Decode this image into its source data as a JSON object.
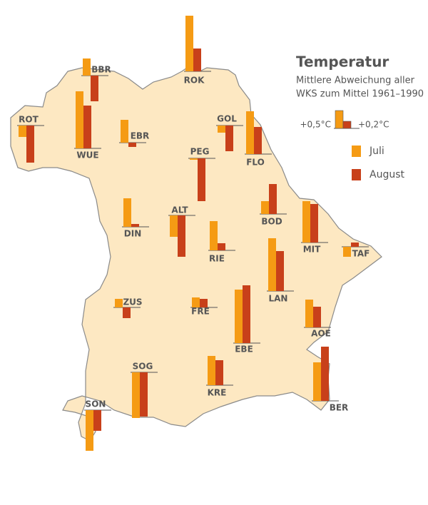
{
  "chart_data": {
    "type": "bar",
    "title": "Temperatur",
    "subtitle": [
      "Mittlere Abweichung aller",
      "WKS zum Mittel 1961–1990"
    ],
    "legend_sample": [
      {
        "value": 0.5,
        "label": "+0,5°C"
      },
      {
        "value": 0.2,
        "label": "+0,2°C"
      }
    ],
    "categories": [
      "ROK",
      "BBR",
      "ROT",
      "WUE",
      "EBR",
      "GOL",
      "PEG",
      "FLO",
      "BOD",
      "MIT",
      "TAF",
      "DIN",
      "ALT",
      "RIE",
      "LAN",
      "ZUS",
      "FRE",
      "EBE",
      "AOE",
      "SOG",
      "KRE",
      "BER",
      "SON"
    ],
    "series": [
      {
        "name": "Juli",
        "color": "#f59b14",
        "values": [
          1.56,
          0.48,
          -0.32,
          1.6,
          0.64,
          -0.2,
          -0.04,
          1.2,
          0.36,
          1.16,
          -0.28,
          0.8,
          -0.6,
          0.82,
          1.48,
          0.24,
          0.28,
          1.5,
          0.78,
          -1.28,
          0.82,
          1.08,
          -1.14
        ]
      },
      {
        "name": "August",
        "color": "#c8401a",
        "values": [
          0.64,
          -0.72,
          -1.04,
          1.2,
          -0.12,
          -0.72,
          -1.2,
          0.76,
          0.84,
          1.08,
          0.12,
          0.08,
          -1.16,
          0.2,
          1.12,
          -0.3,
          0.24,
          1.62,
          0.58,
          -1.24,
          0.7,
          1.52,
          -0.58
        ]
      }
    ]
  }
}
